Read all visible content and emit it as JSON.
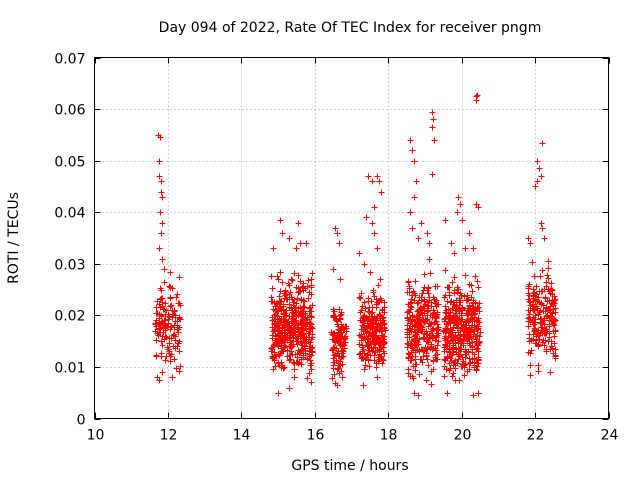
{
  "chart_data": {
    "type": "scatter",
    "title": "Day 094 of 2022, Rate Of TEC Index for receiver pngm",
    "xlabel": "GPS time / hours",
    "ylabel": "ROTI / TECUs",
    "xlim": [
      10,
      24
    ],
    "ylim": [
      0,
      0.07
    ],
    "grid": true,
    "marker": "plus",
    "color": "#ff0000",
    "x_ticks": [
      10,
      12,
      14,
      16,
      18,
      20,
      22,
      24
    ],
    "x_tick_labels": [
      "10",
      "12",
      "14",
      "16",
      "18",
      "20",
      "22",
      "24"
    ],
    "y_ticks": [
      0,
      0.01,
      0.02,
      0.03,
      0.04,
      0.05,
      0.06,
      0.07
    ],
    "y_tick_labels": [
      "0",
      "0.01",
      "0.02",
      "0.03",
      "0.04",
      "0.05",
      "0.06",
      "0.07"
    ],
    "clusters": [
      {
        "x_range": [
          11.65,
          12.35
        ],
        "y_range": [
          0.007,
          0.028
        ],
        "count": 130
      },
      {
        "x_range": [
          14.8,
          15.95
        ],
        "y_range": [
          0.006,
          0.03
        ],
        "count": 450
      },
      {
        "x_range": [
          16.45,
          16.85
        ],
        "y_range": [
          0.006,
          0.025
        ],
        "count": 120
      },
      {
        "x_range": [
          17.2,
          17.9
        ],
        "y_range": [
          0.006,
          0.028
        ],
        "count": 240
      },
      {
        "x_range": [
          18.5,
          19.35
        ],
        "y_range": [
          0.005,
          0.03
        ],
        "count": 300
      },
      {
        "x_range": [
          19.5,
          20.5
        ],
        "y_range": [
          0.005,
          0.03
        ],
        "count": 380
      },
      {
        "x_range": [
          21.8,
          22.55
        ],
        "y_range": [
          0.007,
          0.032
        ],
        "count": 220
      }
    ],
    "series": [
      {
        "name": "ROTI",
        "points": [
          [
            11.72,
            0.055
          ],
          [
            11.78,
            0.0545
          ],
          [
            11.75,
            0.05
          ],
          [
            11.76,
            0.047
          ],
          [
            11.8,
            0.046
          ],
          [
            11.82,
            0.044
          ],
          [
            11.85,
            0.043
          ],
          [
            11.78,
            0.04
          ],
          [
            11.84,
            0.038
          ],
          [
            11.8,
            0.036
          ],
          [
            11.77,
            0.033
          ],
          [
            11.83,
            0.031
          ],
          [
            11.9,
            0.029
          ],
          [
            12.05,
            0.0285
          ],
          [
            12.3,
            0.0275
          ],
          [
            11.7,
            0.008
          ],
          [
            11.75,
            0.0075
          ],
          [
            12.1,
            0.008
          ],
          [
            12.3,
            0.013
          ],
          [
            12.25,
            0.014
          ],
          [
            14.85,
            0.033
          ],
          [
            15.05,
            0.0385
          ],
          [
            15.1,
            0.036
          ],
          [
            15.3,
            0.035
          ],
          [
            15.55,
            0.038
          ],
          [
            15.6,
            0.034
          ],
          [
            15.75,
            0.034
          ],
          [
            15.5,
            0.033
          ],
          [
            15.0,
            0.027
          ],
          [
            15.35,
            0.027
          ],
          [
            15.0,
            0.005
          ],
          [
            15.3,
            0.006
          ],
          [
            15.9,
            0.007
          ],
          [
            16.55,
            0.037
          ],
          [
            16.6,
            0.036
          ],
          [
            16.65,
            0.034
          ],
          [
            16.5,
            0.029
          ],
          [
            16.7,
            0.027
          ],
          [
            16.6,
            0.0065
          ],
          [
            16.75,
            0.008
          ],
          [
            17.45,
            0.047
          ],
          [
            17.55,
            0.046
          ],
          [
            17.7,
            0.047
          ],
          [
            17.75,
            0.046
          ],
          [
            17.8,
            0.044
          ],
          [
            17.6,
            0.041
          ],
          [
            17.55,
            0.038
          ],
          [
            17.4,
            0.039
          ],
          [
            17.6,
            0.036
          ],
          [
            17.7,
            0.033
          ],
          [
            17.2,
            0.032
          ],
          [
            17.35,
            0.03
          ],
          [
            17.5,
            0.0285
          ],
          [
            17.3,
            0.0065
          ],
          [
            18.6,
            0.054
          ],
          [
            18.65,
            0.052
          ],
          [
            18.7,
            0.05
          ],
          [
            18.75,
            0.046
          ],
          [
            18.7,
            0.043
          ],
          [
            18.6,
            0.04
          ],
          [
            18.65,
            0.037
          ],
          [
            18.8,
            0.035
          ],
          [
            18.9,
            0.038
          ],
          [
            19.05,
            0.036
          ],
          [
            19.1,
            0.034
          ],
          [
            19.2,
            0.0595
          ],
          [
            19.22,
            0.058
          ],
          [
            19.18,
            0.0565
          ],
          [
            19.25,
            0.054
          ],
          [
            19.2,
            0.0475
          ],
          [
            19.1,
            0.031
          ],
          [
            18.7,
            0.005
          ],
          [
            18.8,
            0.0045
          ],
          [
            19.55,
            0.0385
          ],
          [
            19.7,
            0.034
          ],
          [
            19.8,
            0.032
          ],
          [
            19.9,
            0.043
          ],
          [
            19.95,
            0.0415
          ],
          [
            19.88,
            0.04
          ],
          [
            20.0,
            0.0385
          ],
          [
            20.1,
            0.033
          ],
          [
            20.2,
            0.036
          ],
          [
            20.3,
            0.033
          ],
          [
            20.38,
            0.0625
          ],
          [
            20.42,
            0.0628
          ],
          [
            20.4,
            0.0618
          ],
          [
            20.45,
            0.041
          ],
          [
            20.4,
            0.0415
          ],
          [
            19.6,
            0.005
          ],
          [
            20.3,
            0.0045
          ],
          [
            20.45,
            0.005
          ],
          [
            21.8,
            0.035
          ],
          [
            21.85,
            0.034
          ],
          [
            22.0,
            0.045
          ],
          [
            22.05,
            0.046
          ],
          [
            22.15,
            0.047
          ],
          [
            22.1,
            0.0485
          ],
          [
            22.05,
            0.05
          ],
          [
            22.2,
            0.0535
          ],
          [
            22.15,
            0.038
          ],
          [
            22.2,
            0.037
          ],
          [
            22.25,
            0.035
          ],
          [
            21.85,
            0.0085
          ],
          [
            22.4,
            0.009
          ]
        ]
      }
    ]
  }
}
